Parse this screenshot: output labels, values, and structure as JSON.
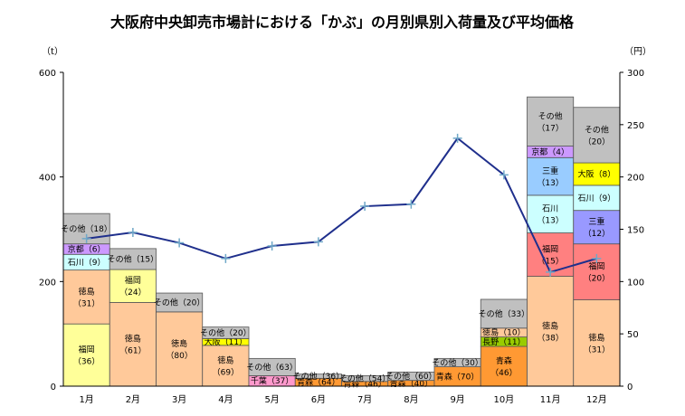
{
  "chart_data": {
    "type": "bar",
    "title": "大阪府中央卸売市場計における「かぶ」の月別県別入荷量及び平均価格",
    "ylabel_left": "（t）",
    "ylabel_right": "（円）",
    "ylim_left": [
      0,
      600
    ],
    "ylim_right": [
      0,
      300
    ],
    "yticks_left": [
      "0",
      "200",
      "400",
      "600"
    ],
    "yticks_right": [
      "0",
      "50",
      "100",
      "150",
      "200",
      "250",
      "300"
    ],
    "categories": [
      "1月",
      "2月",
      "3月",
      "4月",
      "5月",
      "6月",
      "7月",
      "8月",
      "9月",
      "10月",
      "11月",
      "12月"
    ],
    "colors": {
      "徳島": "#FFC99A",
      "福岡": "#FFFF99",
      "石川": "#CCFFFF",
      "京都": "#CC99FF",
      "その他": "#C0C0C0",
      "大阪": "#FFFF00",
      "千葉": "#FF99CC",
      "青森": "#FF9933",
      "長野": "#99CC00",
      "三重": "#99CCFF",
      "福岡2": "#FF8080",
      "三重2": "#9999FF"
    },
    "stacks": [
      [
        {
          "pref": "福岡",
          "pct": 36,
          "label": "福岡（36）",
          "color": "福岡",
          "val": 119
        },
        {
          "pref": "徳島",
          "pct": 31,
          "label": "徳島（31）",
          "color": "徳島",
          "val": 103
        },
        {
          "pref": "石川",
          "pct": 9,
          "label": "石川（9）",
          "color": "石川",
          "val": 30
        },
        {
          "pref": "京都",
          "pct": 6,
          "label": "京都（6）",
          "color": "京都",
          "val": 20
        },
        {
          "pref": "その他",
          "pct": 18,
          "label": "その他（18）",
          "color": "その他",
          "val": 58
        }
      ],
      [
        {
          "pref": "徳島",
          "pct": 61,
          "label": "徳島（61）",
          "color": "徳島",
          "val": 160
        },
        {
          "pref": "福岡",
          "pct": 24,
          "label": "福岡（24）",
          "color": "福岡",
          "val": 63
        },
        {
          "pref": "その他",
          "pct": 15,
          "label": "その他（15）",
          "color": "その他",
          "val": 40
        }
      ],
      [
        {
          "pref": "徳島",
          "pct": 80,
          "label": "徳島（80）",
          "color": "徳島",
          "val": 142
        },
        {
          "pref": "その他",
          "pct": 20,
          "label": "その他（20）",
          "color": "その他",
          "val": 36
        }
      ],
      [
        {
          "pref": "徳島",
          "pct": 69,
          "label": "徳島（69）",
          "color": "徳島",
          "val": 78
        },
        {
          "pref": "大阪",
          "pct": 11,
          "label": "大阪（11）",
          "color": "大阪",
          "val": 13
        },
        {
          "pref": "その他",
          "pct": 20,
          "label": "その他（20）",
          "color": "その他",
          "val": 22
        }
      ],
      [
        {
          "pref": "千葉",
          "pct": 37,
          "label": "千葉（37）",
          "color": "千葉",
          "val": 20
        },
        {
          "pref": "その他",
          "pct": 63,
          "label": "その他（63）",
          "color": "その他",
          "val": 33
        }
      ],
      [
        {
          "pref": "青森",
          "pct": 64,
          "label": "青森（64）",
          "color": "青森",
          "val": 15
        },
        {
          "pref": "その他",
          "pct": 36,
          "label": "その他（36）",
          "color": "その他",
          "val": 8
        }
      ],
      [
        {
          "pref": "青森",
          "pct": 46,
          "label": "青森（46）",
          "color": "青森",
          "val": 9
        },
        {
          "pref": "その他",
          "pct": 54,
          "label": "その他（54）",
          "color": "その他",
          "val": 11
        }
      ],
      [
        {
          "pref": "青森",
          "pct": 40,
          "label": "青森（40）",
          "color": "青森",
          "val": 11
        },
        {
          "pref": "その他",
          "pct": 60,
          "label": "その他（60）",
          "color": "その他",
          "val": 16
        }
      ],
      [
        {
          "pref": "青森",
          "pct": 70,
          "label": "青森（70）",
          "color": "青森",
          "val": 37
        },
        {
          "pref": "その他",
          "pct": 30,
          "label": "その他（30）",
          "color": "その他",
          "val": 16
        }
      ],
      [
        {
          "pref": "青森",
          "pct": 46,
          "label": "青森（46）",
          "color": "青森",
          "val": 76
        },
        {
          "pref": "長野",
          "pct": 11,
          "label": "長野（11）",
          "color": "長野",
          "val": 18
        },
        {
          "pref": "徳島",
          "pct": 10,
          "label": "徳島（10）",
          "color": "徳島",
          "val": 17
        },
        {
          "pref": "その他",
          "pct": 33,
          "label": "その他（33）",
          "color": "その他",
          "val": 55
        }
      ],
      [
        {
          "pref": "徳島",
          "pct": 38,
          "label": "徳島（38）",
          "color": "徳島",
          "val": 210
        },
        {
          "pref": "福岡",
          "pct": 15,
          "label": "福岡（15）",
          "color": "福岡2",
          "val": 83
        },
        {
          "pref": "石川",
          "pct": 13,
          "label": "石川（13）",
          "color": "石川",
          "val": 72
        },
        {
          "pref": "三重",
          "pct": 13,
          "label": "三重（13）",
          "color": "三重",
          "val": 72
        },
        {
          "pref": "京都",
          "pct": 4,
          "label": "京都（4）",
          "color": "京都",
          "val": 22
        },
        {
          "pref": "その他",
          "pct": 17,
          "label": "その他（17）",
          "color": "その他",
          "val": 94
        }
      ],
      [
        {
          "pref": "徳島",
          "pct": 31,
          "label": "徳島（31）",
          "color": "徳島",
          "val": 165
        },
        {
          "pref": "福岡",
          "pct": 20,
          "label": "福岡（20）",
          "color": "福岡2",
          "val": 107
        },
        {
          "pref": "三重",
          "pct": 12,
          "label": "三重（12）",
          "color": "三重2",
          "val": 64
        },
        {
          "pref": "石川",
          "pct": 9,
          "label": "石川（9）",
          "color": "石川",
          "val": 48
        },
        {
          "pref": "大阪",
          "pct": 8,
          "label": "大阪（8）",
          "color": "大阪",
          "val": 43
        },
        {
          "pref": "その他",
          "pct": 20,
          "label": "その他（20）",
          "color": "その他",
          "val": 106
        }
      ]
    ],
    "price_series": {
      "name": "平均価格",
      "axis": "right",
      "values": [
        141,
        147,
        137,
        122,
        134,
        138,
        172,
        174,
        237,
        202,
        109,
        122
      ],
      "color": "#1F2F8C"
    }
  }
}
